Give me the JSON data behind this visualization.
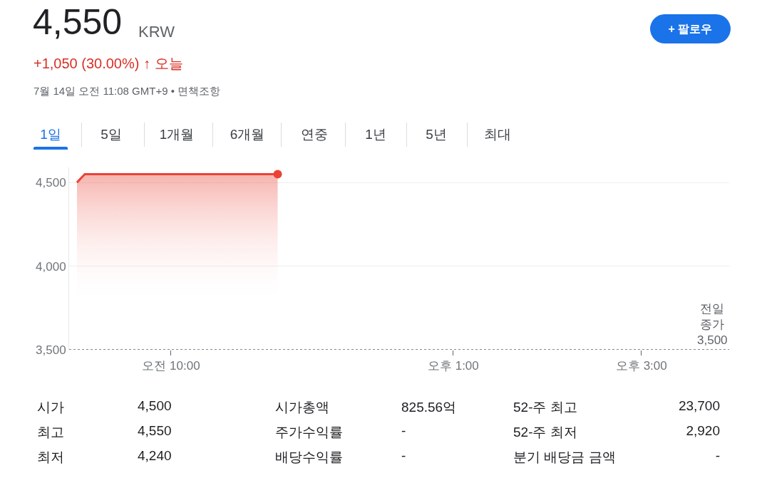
{
  "chart_data": {
    "type": "area",
    "title": "4,550",
    "subtitle": "+1,050 (30.00%) ↑ 오늘",
    "xlim": [
      "--07-14T08:55",
      "--07-14T15:56"
    ],
    "ylim": [
      3500,
      4590
    ],
    "xticks": [
      {
        "value": "--07-14T10:00",
        "label": "오전 10:00"
      },
      {
        "value": "--07-14T13:00",
        "label": "오후 1:00"
      },
      {
        "value": "--07-14T15:00",
        "label": "오후 3:00"
      }
    ],
    "yticks": [
      {
        "value": 3500,
        "label": "3,500"
      },
      {
        "value": 4000,
        "label": "4,000"
      },
      {
        "value": 4500,
        "label": "4,500"
      }
    ],
    "grid": "y",
    "marker": "none",
    "line_style": "solid",
    "series": [
      {
        "color": "#ea4335",
        "x": [
          "--07-14T09:00",
          "--07-14T09:05",
          "--07-14T11:08"
        ],
        "values": [
          4500,
          4550,
          4550
        ]
      },
      {
        "type": "scatter",
        "marker": "circle",
        "color": "#ea4335",
        "x": [
          "--07-14T11:08"
        ],
        "values": [
          4550
        ]
      }
    ],
    "ref_lines": [
      {
        "axis": "y",
        "value": 3500,
        "label": "전일 종가 3,500",
        "color": "#5f6368",
        "line_style": "dotted"
      }
    ],
    "annotations": [
      "KRW",
      "7월 14일 오전 11:08 GMT+9 • 면책조항",
      "+ 팔로우",
      "1일",
      "5일",
      "1개월",
      "6개월",
      "연중",
      "1년",
      "5년",
      "최대",
      "시가",
      "4,500",
      "시가총액",
      "825.56억",
      "52-주 최고",
      "23,700",
      "최고",
      "4,550",
      "주가수익률",
      "-",
      "52-주 최저",
      "2,920",
      "최저",
      "4,240",
      "배당수익률",
      "-",
      "분기 배당금 금액",
      "-"
    ]
  }
}
